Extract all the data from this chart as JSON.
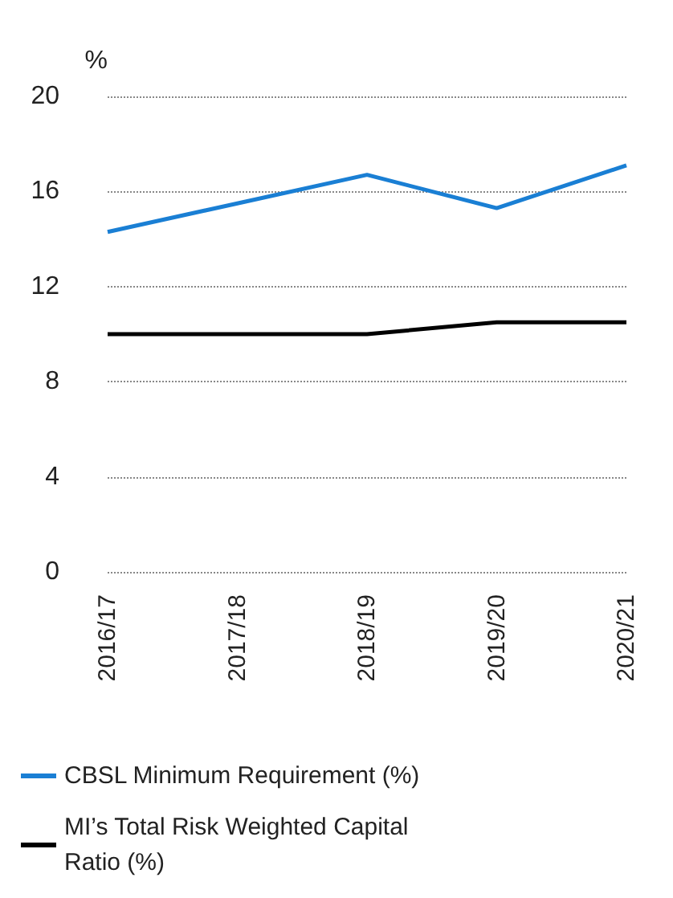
{
  "chart_data": {
    "type": "line",
    "ylabel": "%",
    "categories": [
      "2016/17",
      "2017/18",
      "2018/19",
      "2019/20",
      "2020/21"
    ],
    "series": [
      {
        "name": "CBSL Minimum Requirement (%)",
        "color": "#1a7fd4",
        "values": [
          14.3,
          15.5,
          16.7,
          15.3,
          17.1
        ]
      },
      {
        "name": "MI’s Total Risk Weighted Capital Ratio (%)",
        "color": "#000000",
        "values": [
          10.0,
          10.0,
          10.0,
          10.5,
          10.5
        ]
      }
    ],
    "ylim": [
      0,
      20
    ],
    "yticks": [
      0,
      4,
      8,
      12,
      16,
      20
    ],
    "grid": "y",
    "legend": "bottom",
    "marker": "none",
    "line_style": "solid"
  }
}
